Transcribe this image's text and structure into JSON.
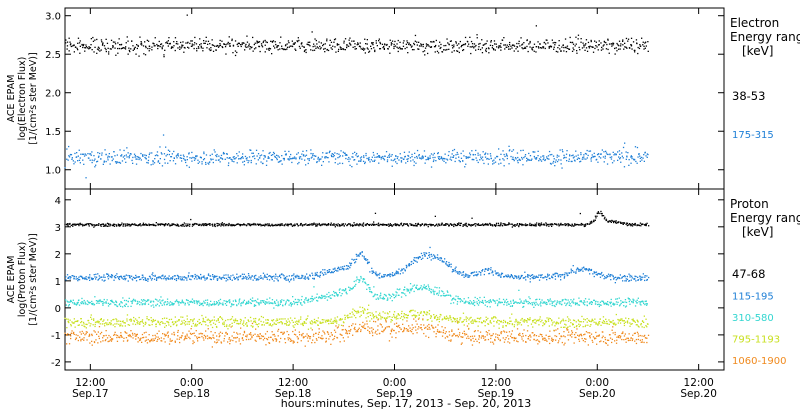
{
  "chart_data": {
    "type": "scatter",
    "xlabel": "hours:minutes, Sep. 17, 2013 - Sep. 20, 2013",
    "x_ticks": [
      {
        "time": "12:00",
        "date": "Sep.17",
        "h": 12
      },
      {
        "time": "0:00",
        "date": "Sep.18",
        "h": 24
      },
      {
        "time": "12:00",
        "date": "Sep.18",
        "h": 36
      },
      {
        "time": "0:00",
        "date": "Sep.19",
        "h": 48
      },
      {
        "time": "12:00",
        "date": "Sep.19",
        "h": 60
      },
      {
        "time": "0:00",
        "date": "Sep.20",
        "h": 72
      },
      {
        "time": "12:00",
        "date": "Sep.20",
        "h": 84
      }
    ],
    "xlim_hours": [
      9,
      87
    ],
    "data_range_hours": [
      9.0,
      78.0
    ],
    "panels": [
      {
        "id": "electron",
        "ylabel_lines": [
          "ACE EPAM",
          "log(Electron Flux)",
          "[1/(cm²s ster MeV)]"
        ],
        "ylim": [
          0.75,
          3.1
        ],
        "yticks": [
          1.0,
          1.5,
          2.0,
          2.5,
          3.0
        ],
        "ytick_labels": [
          "1.0",
          "1.5",
          "2.0",
          "2.5",
          "3.0"
        ],
        "legend_title": [
          "Electron",
          "Energy ranges"
        ],
        "legend_unit": "[keV]",
        "series": [
          {
            "name": "38-53",
            "color": "#000000",
            "base": 2.62,
            "noise": 0.07,
            "events": []
          },
          {
            "name": "175-315",
            "color": "#1e7fd6",
            "base": 1.17,
            "noise": 0.07,
            "events": []
          }
        ]
      },
      {
        "id": "proton",
        "ylabel_lines": [
          "ACE EPAM",
          "log(Proton Flux)",
          "[1/(cm²s ster MeV)]"
        ],
        "ylim": [
          -2.3,
          4.4
        ],
        "yticks": [
          -2,
          -1,
          0,
          1,
          2,
          3,
          4
        ],
        "ytick_labels": [
          "-2",
          "-1",
          "0",
          "1",
          "2",
          "3",
          "4"
        ],
        "legend_title": [
          "Proton",
          "Energy ranges"
        ],
        "legend_unit": "[keV]",
        "series": [
          {
            "name": "47-68",
            "color": "#000000",
            "base": 3.1,
            "noise": 0.04,
            "events": [
              {
                "h": 72.2,
                "amp": 0.45,
                "w": 0.7
              },
              {
                "h": 74.0,
                "amp": 0.12,
                "w": 1.0
              }
            ]
          },
          {
            "name": "115-195",
            "color": "#1e7fd6",
            "base": 1.15,
            "noise": 0.09,
            "events": [
              {
                "h": 41.5,
                "amp": 0.3,
                "w": 2.5
              },
              {
                "h": 44.0,
                "amp": 0.75,
                "w": 1.2
              },
              {
                "h": 52.0,
                "amp": 0.85,
                "w": 3.0
              },
              {
                "h": 59.0,
                "amp": 0.25,
                "w": 1.5
              },
              {
                "h": 70.0,
                "amp": 0.3,
                "w": 2.0
              }
            ]
          },
          {
            "name": "310-580",
            "color": "#33d6d0",
            "base": 0.22,
            "noise": 0.11,
            "events": [
              {
                "h": 42.0,
                "amp": 0.35,
                "w": 3.5
              },
              {
                "h": 44.0,
                "amp": 0.6,
                "w": 1.2
              },
              {
                "h": 51.0,
                "amp": 0.55,
                "w": 3.5
              }
            ]
          },
          {
            "name": "795-1193",
            "color": "#c8e020",
            "base": -0.5,
            "noise": 0.14,
            "events": [
              {
                "h": 44.0,
                "amp": 0.35,
                "w": 2.0
              },
              {
                "h": 50.0,
                "amp": 0.3,
                "w": 4.0
              }
            ]
          },
          {
            "name": "1060-1900",
            "color": "#f08a1e",
            "base": -1.05,
            "noise": 0.2,
            "events": [
              {
                "h": 44.0,
                "amp": 0.3,
                "w": 2.5
              },
              {
                "h": 50.0,
                "amp": 0.35,
                "w": 4.0
              }
            ]
          }
        ]
      }
    ]
  }
}
